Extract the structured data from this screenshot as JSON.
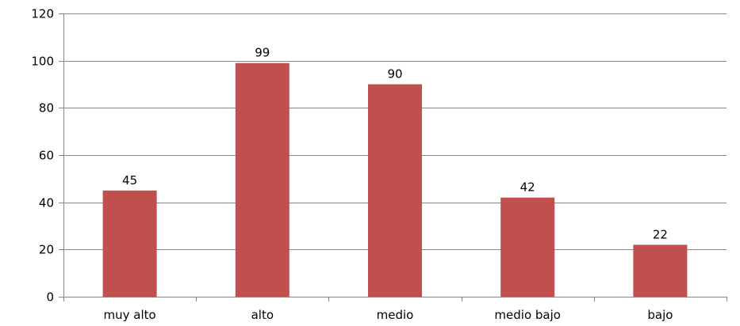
{
  "chart_data": {
    "type": "bar",
    "title": "",
    "xlabel": "",
    "ylabel": "",
    "categories": [
      "muy alto",
      "alto",
      "medio",
      "medio bajo",
      "bajo"
    ],
    "values": [
      45,
      99,
      90,
      42,
      22
    ],
    "data_labels": [
      "45",
      "99",
      "90",
      "42",
      "22"
    ],
    "ylim": [
      0,
      120
    ],
    "yticks": [
      0,
      20,
      40,
      60,
      80,
      100,
      120
    ],
    "ytick_labels": [
      "0",
      "20",
      "40",
      "60",
      "80",
      "100",
      "120"
    ],
    "grid": true,
    "legend": "none",
    "colors": {
      "bar": "#c0504d",
      "grid": "#878787",
      "axis": "#878787"
    }
  }
}
